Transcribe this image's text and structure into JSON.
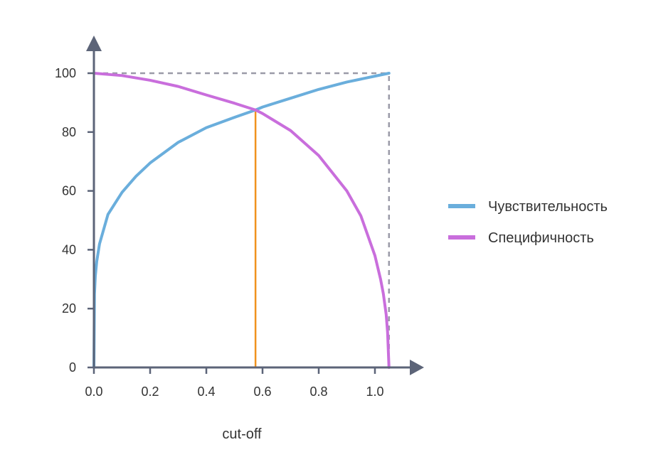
{
  "chart_data": {
    "type": "line",
    "title": "",
    "xlabel": "cut-off",
    "ylabel": "",
    "xlim": [
      0,
      1.05
    ],
    "ylim": [
      0,
      100
    ],
    "x_ticks": [
      "0.0",
      "0.2",
      "0.4",
      "0.6",
      "0.8",
      "1.0"
    ],
    "y_ticks": [
      "0",
      "20",
      "40",
      "60",
      "80",
      "100"
    ],
    "grid": false,
    "legend_position": "right",
    "series": [
      {
        "name": "Чувствительность",
        "color": "#6aaedc",
        "x": [
          0,
          0.002,
          0.005,
          0.01,
          0.02,
          0.05,
          0.1,
          0.15,
          0.2,
          0.3,
          0.4,
          0.5,
          0.575,
          0.6,
          0.7,
          0.8,
          0.9,
          1.0,
          1.05
        ],
        "y": [
          0,
          25,
          31,
          36,
          42,
          52,
          59.5,
          65,
          69.5,
          76.5,
          81.5,
          85,
          87.5,
          88.5,
          91.5,
          94.5,
          97,
          99,
          100
        ]
      },
      {
        "name": "Специфичность",
        "color": "#c96edc",
        "x": [
          0,
          0.1,
          0.2,
          0.3,
          0.4,
          0.5,
          0.575,
          0.6,
          0.7,
          0.8,
          0.9,
          0.95,
          1.0,
          1.02,
          1.03,
          1.04,
          1.045,
          1.05
        ],
        "y": [
          100,
          99.2,
          97.6,
          95.5,
          92.6,
          89.8,
          87.5,
          86.3,
          80.5,
          72,
          60,
          51.5,
          38,
          30,
          25,
          18,
          12,
          0
        ]
      }
    ],
    "annotations": [
      {
        "type": "vline",
        "x": 0.575,
        "y_from": 0,
        "y_to": 87.5,
        "color": "#f0921e"
      },
      {
        "type": "hline-dashed",
        "x_from": 0,
        "x_to": 1.05,
        "y": 100,
        "color": "#9b9ba8"
      },
      {
        "type": "vline-dashed",
        "x": 1.05,
        "y_from": 0,
        "y_to": 100,
        "color": "#9b9ba8"
      }
    ],
    "axis_color": "#5c6478"
  }
}
